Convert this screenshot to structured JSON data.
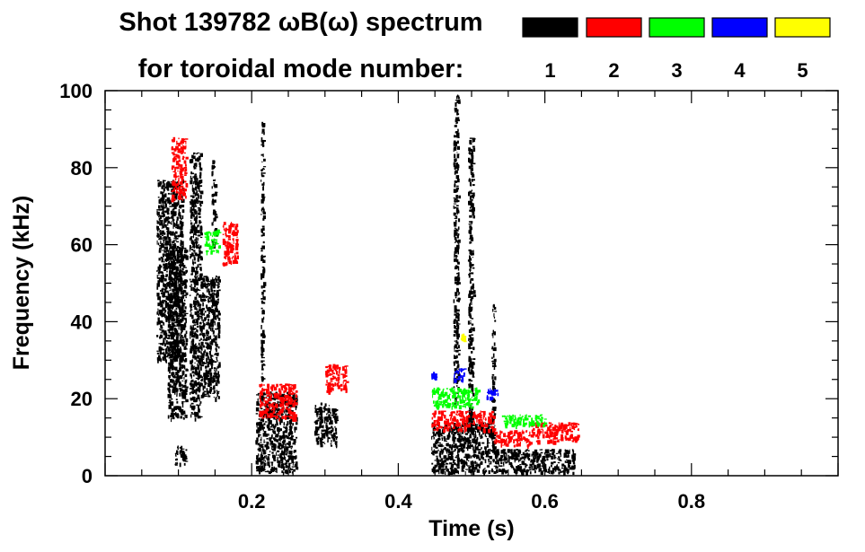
{
  "chart_data": {
    "type": "heatmap",
    "title_line1": "Shot 139782 ωB(ω) spectrum",
    "title_line2": "for toroidal mode number:",
    "xlabel": "Time (s)",
    "ylabel": "Frequency (kHz)",
    "xlim": [
      0,
      1.0
    ],
    "ylim": [
      0,
      100
    ],
    "x_ticks": [
      0.2,
      0.4,
      0.6,
      0.8
    ],
    "y_ticks": [
      0,
      20,
      40,
      60,
      80,
      100
    ],
    "legend": [
      {
        "mode": "1",
        "color": "#000000"
      },
      {
        "mode": "2",
        "color": "#ff0000"
      },
      {
        "mode": "3",
        "color": "#00ff00"
      },
      {
        "mode": "4",
        "color": "#0000ff"
      },
      {
        "mode": "5",
        "color": "#ffff00"
      }
    ],
    "blobs": [
      {
        "mode": 1,
        "t0": 0.07,
        "t1": 0.105,
        "f0": 30,
        "f1": 77
      },
      {
        "mode": 1,
        "t0": 0.085,
        "t1": 0.11,
        "f0": 15,
        "f1": 60
      },
      {
        "mode": 1,
        "t0": 0.095,
        "t1": 0.11,
        "f0": 3,
        "f1": 8
      },
      {
        "mode": 1,
        "t0": 0.115,
        "t1": 0.13,
        "f0": 15,
        "f1": 84
      },
      {
        "mode": 1,
        "t0": 0.13,
        "t1": 0.155,
        "f0": 20,
        "f1": 52
      },
      {
        "mode": 1,
        "t0": 0.145,
        "t1": 0.15,
        "f0": 60,
        "f1": 82
      },
      {
        "mode": 1,
        "t0": 0.205,
        "t1": 0.26,
        "f0": 1,
        "f1": 22
      },
      {
        "mode": 1,
        "t0": 0.212,
        "t1": 0.216,
        "f0": 25,
        "f1": 92
      },
      {
        "mode": 1,
        "t0": 0.285,
        "t1": 0.315,
        "f0": 8,
        "f1": 19
      },
      {
        "mode": 1,
        "t0": 0.445,
        "t1": 0.53,
        "f0": 1,
        "f1": 14
      },
      {
        "mode": 1,
        "t0": 0.53,
        "t1": 0.64,
        "f0": 1,
        "f1": 7
      },
      {
        "mode": 1,
        "t0": 0.475,
        "t1": 0.482,
        "f0": 18,
        "f1": 99
      },
      {
        "mode": 1,
        "t0": 0.495,
        "t1": 0.502,
        "f0": 10,
        "f1": 88
      },
      {
        "mode": 1,
        "t0": 0.527,
        "t1": 0.531,
        "f0": 5,
        "f1": 45
      },
      {
        "mode": 2,
        "t0": 0.09,
        "t1": 0.11,
        "f0": 72,
        "f1": 88
      },
      {
        "mode": 2,
        "t0": 0.16,
        "t1": 0.18,
        "f0": 55,
        "f1": 66
      },
      {
        "mode": 2,
        "t0": 0.21,
        "t1": 0.26,
        "f0": 15,
        "f1": 24
      },
      {
        "mode": 2,
        "t0": 0.3,
        "t1": 0.33,
        "f0": 22,
        "f1": 29
      },
      {
        "mode": 2,
        "t0": 0.445,
        "t1": 0.53,
        "f0": 12,
        "f1": 17
      },
      {
        "mode": 2,
        "t0": 0.53,
        "t1": 0.58,
        "f0": 8,
        "f1": 12
      },
      {
        "mode": 2,
        "t0": 0.58,
        "t1": 0.645,
        "f0": 9,
        "f1": 14
      },
      {
        "mode": 3,
        "t0": 0.135,
        "t1": 0.155,
        "f0": 58,
        "f1": 64
      },
      {
        "mode": 3,
        "t0": 0.445,
        "t1": 0.51,
        "f0": 18,
        "f1": 23
      },
      {
        "mode": 3,
        "t0": 0.54,
        "t1": 0.6,
        "f0": 13,
        "f1": 16
      },
      {
        "mode": 4,
        "t0": 0.445,
        "t1": 0.45,
        "f0": 25,
        "f1": 27
      },
      {
        "mode": 4,
        "t0": 0.475,
        "t1": 0.49,
        "f0": 25,
        "f1": 28
      },
      {
        "mode": 4,
        "t0": 0.52,
        "t1": 0.535,
        "f0": 20,
        "f1": 23
      },
      {
        "mode": 5,
        "t0": 0.485,
        "t1": 0.49,
        "f0": 35,
        "f1": 37
      }
    ]
  }
}
